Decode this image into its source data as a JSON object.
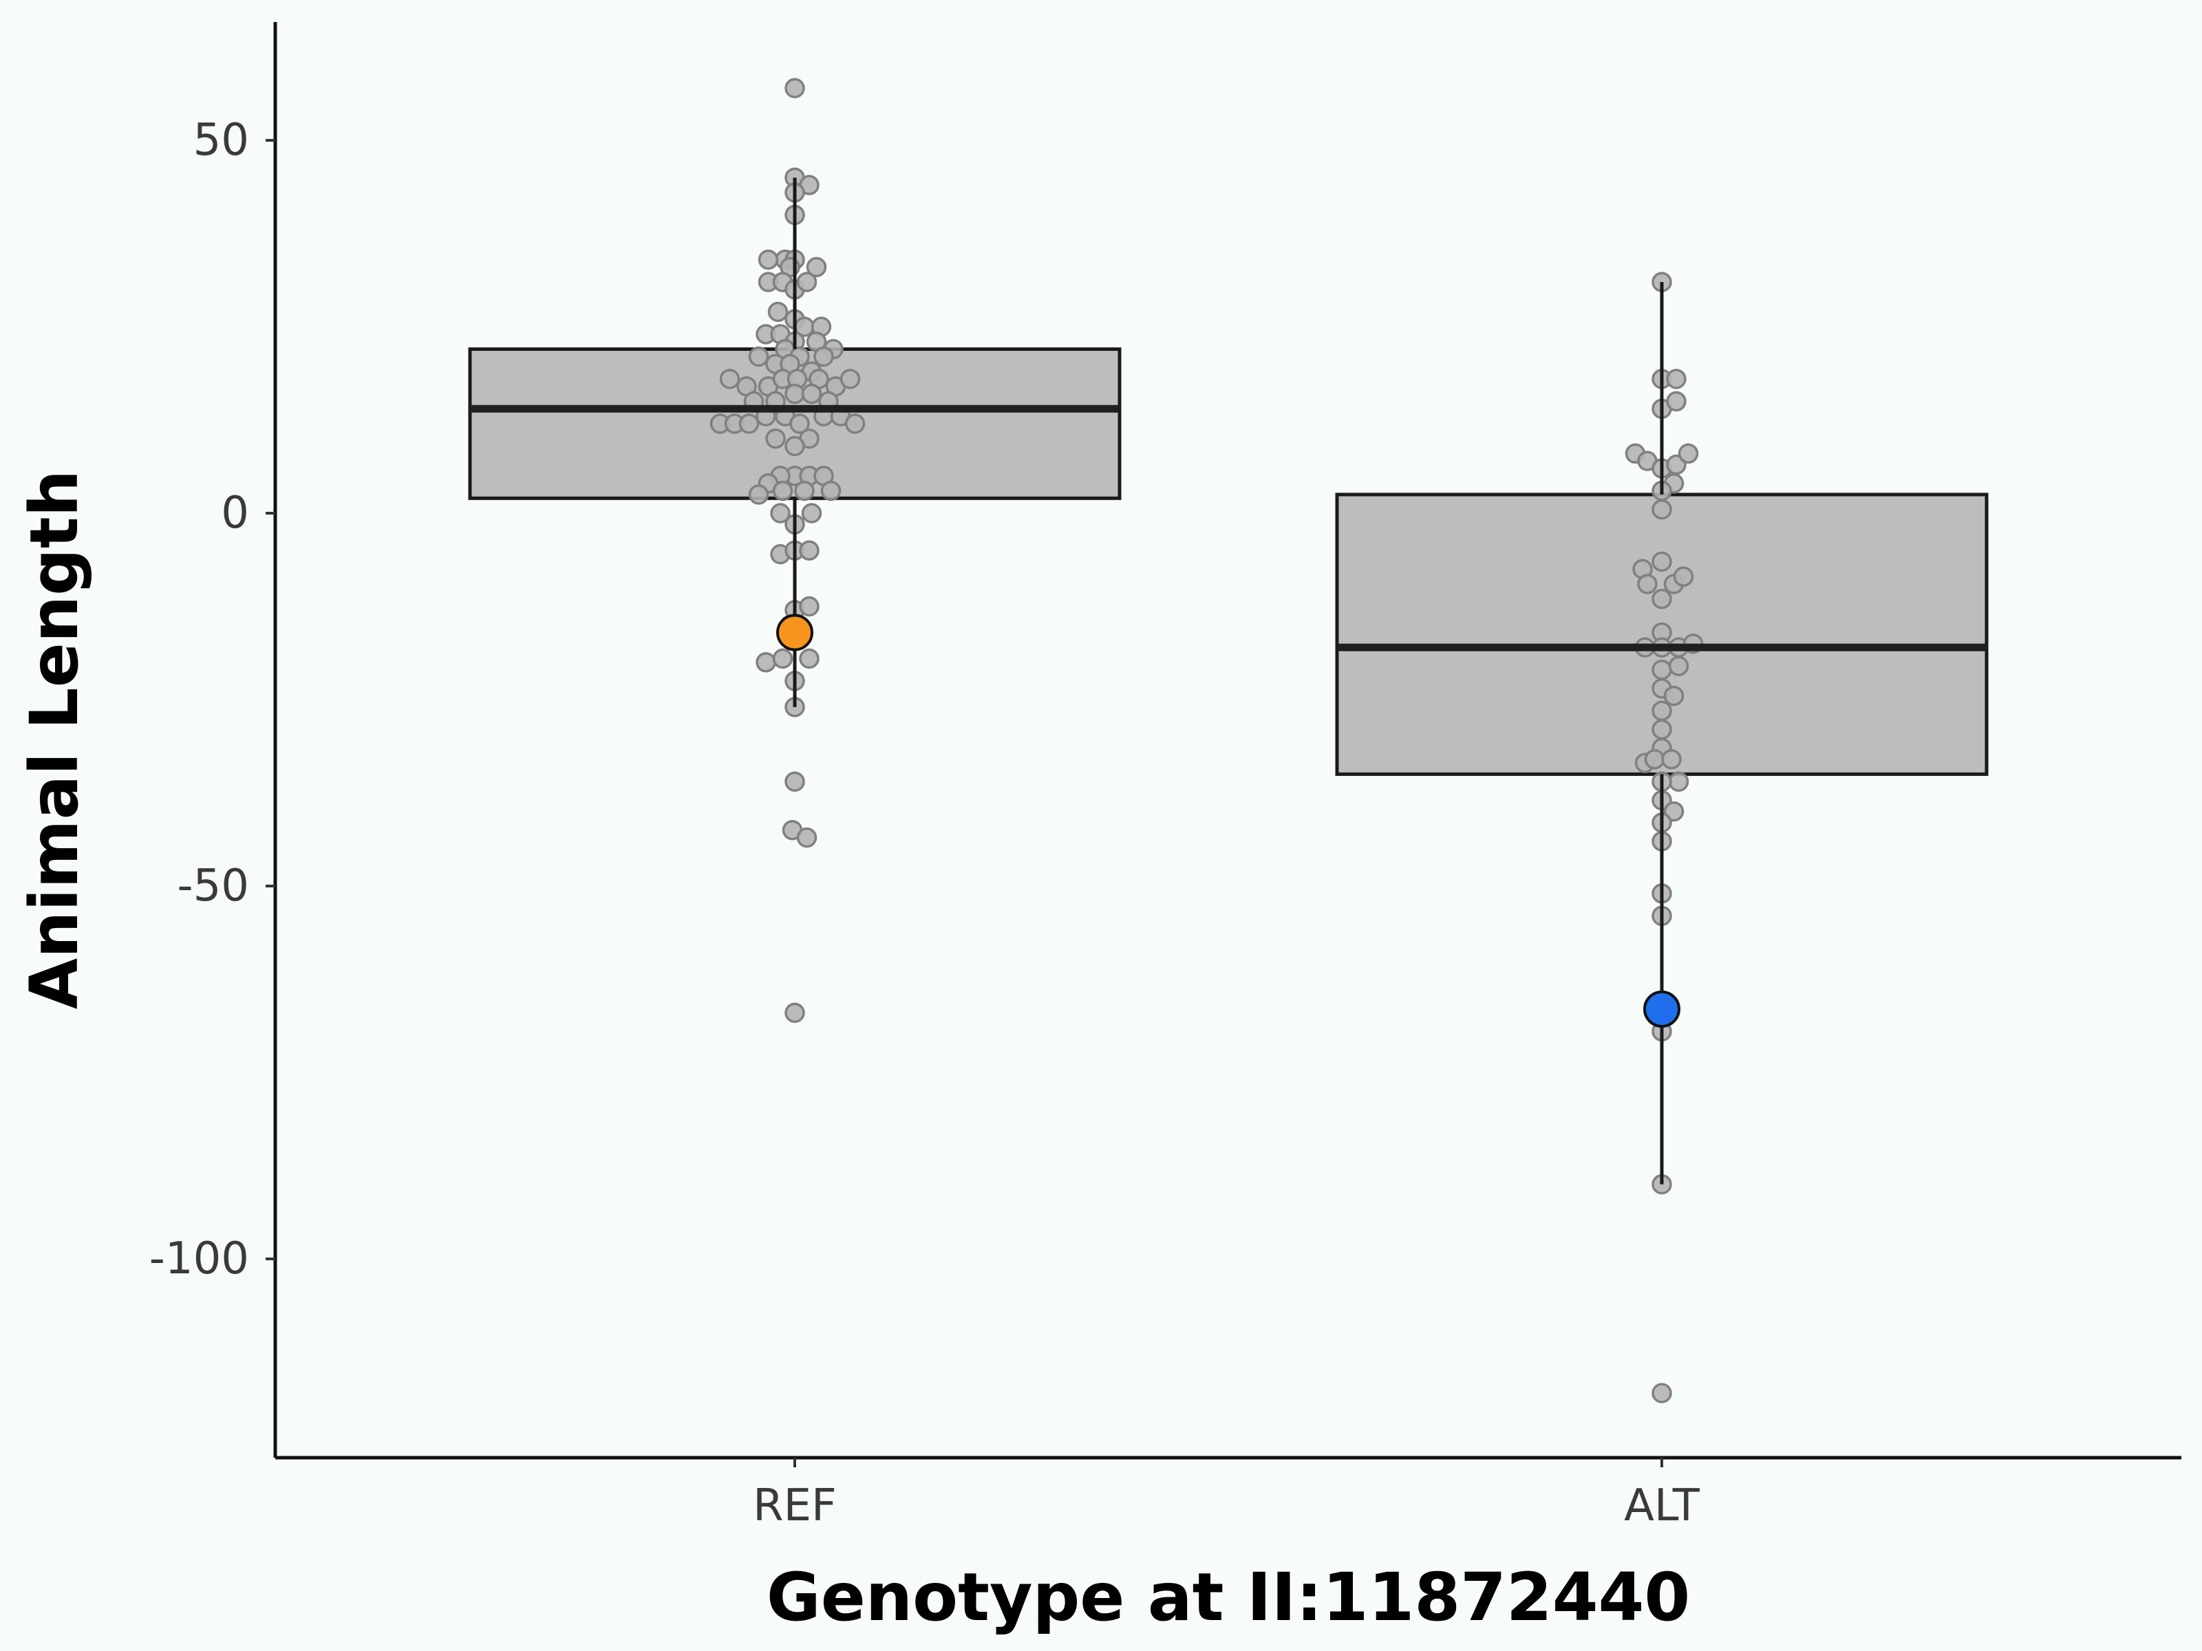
{
  "chart_data": {
    "type": "box",
    "title": "",
    "xlabel": "Genotype at II:11872440",
    "ylabel": "Animal Length",
    "categories": [
      "REF",
      "ALT"
    ],
    "ylim": [
      -127,
      66
    ],
    "yticks": [
      50,
      0,
      -50,
      -100
    ],
    "ytick_labels": [
      "50",
      "0",
      "-50",
      "-100"
    ],
    "grid": false,
    "colors": {
      "background": "#f8fcf8",
      "box_fill": "#bdbebc",
      "box_stroke": "#1a1a1a",
      "point_fill": "#b4b4b4",
      "point_stroke": "#808080",
      "highlight_ref": "#f7941d",
      "highlight_alt": "#1f6fec"
    },
    "boxes": [
      {
        "category": "REF",
        "q1": 2,
        "median": 14,
        "q3": 22,
        "whisker_low": -26,
        "whisker_high": 45
      },
      {
        "category": "ALT",
        "q1": -35,
        "median": -18,
        "q3": 2.5,
        "whisker_low": -90,
        "whisker_high": 31
      }
    ],
    "points": [
      {
        "category": "REF",
        "offset": 0,
        "y": 57
      },
      {
        "category": "REF",
        "offset": 0,
        "y": 45
      },
      {
        "category": "REF",
        "offset": 0.06,
        "y": 44
      },
      {
        "category": "REF",
        "offset": 0,
        "y": 43
      },
      {
        "category": "REF",
        "offset": 0,
        "y": 40
      },
      {
        "category": "REF",
        "offset": -0.04,
        "y": 34
      },
      {
        "category": "REF",
        "offset": -0.11,
        "y": 34
      },
      {
        "category": "REF",
        "offset": 0,
        "y": 34
      },
      {
        "category": "REF",
        "offset": -0.02,
        "y": 33
      },
      {
        "category": "REF",
        "offset": 0.09,
        "y": 33
      },
      {
        "category": "REF",
        "offset": -0.11,
        "y": 31
      },
      {
        "category": "REF",
        "offset": -0.05,
        "y": 31
      },
      {
        "category": "REF",
        "offset": 0,
        "y": 30
      },
      {
        "category": "REF",
        "offset": 0.05,
        "y": 31
      },
      {
        "category": "REF",
        "offset": -0.07,
        "y": 27
      },
      {
        "category": "REF",
        "offset": 0,
        "y": 26
      },
      {
        "category": "REF",
        "offset": -0.12,
        "y": 24
      },
      {
        "category": "REF",
        "offset": -0.06,
        "y": 24
      },
      {
        "category": "REF",
        "offset": 0.04,
        "y": 25
      },
      {
        "category": "REF",
        "offset": 0.11,
        "y": 25
      },
      {
        "category": "REF",
        "offset": 0,
        "y": 23
      },
      {
        "category": "REF",
        "offset": 0.09,
        "y": 23
      },
      {
        "category": "REF",
        "offset": 0.16,
        "y": 22
      },
      {
        "category": "REF",
        "offset": -0.04,
        "y": 22
      },
      {
        "category": "REF",
        "offset": 0.02,
        "y": 21
      },
      {
        "category": "REF",
        "offset": -0.15,
        "y": 21
      },
      {
        "category": "REF",
        "offset": -0.08,
        "y": 20
      },
      {
        "category": "REF",
        "offset": -0.02,
        "y": 20
      },
      {
        "category": "REF",
        "offset": 0.07,
        "y": 19
      },
      {
        "category": "REF",
        "offset": 0.12,
        "y": 21
      },
      {
        "category": "REF",
        "offset": -0.27,
        "y": 18
      },
      {
        "category": "REF",
        "offset": -0.2,
        "y": 17
      },
      {
        "category": "REF",
        "offset": -0.11,
        "y": 17
      },
      {
        "category": "REF",
        "offset": -0.05,
        "y": 18
      },
      {
        "category": "REF",
        "offset": 0.01,
        "y": 18
      },
      {
        "category": "REF",
        "offset": 0.1,
        "y": 18
      },
      {
        "category": "REF",
        "offset": 0.17,
        "y": 17
      },
      {
        "category": "REF",
        "offset": 0.23,
        "y": 18
      },
      {
        "category": "REF",
        "offset": -0.17,
        "y": 15
      },
      {
        "category": "REF",
        "offset": -0.08,
        "y": 15
      },
      {
        "category": "REF",
        "offset": 0,
        "y": 16
      },
      {
        "category": "REF",
        "offset": 0.07,
        "y": 16
      },
      {
        "category": "REF",
        "offset": 0.14,
        "y": 15
      },
      {
        "category": "REF",
        "offset": -0.31,
        "y": 12
      },
      {
        "category": "REF",
        "offset": -0.25,
        "y": 12
      },
      {
        "category": "REF",
        "offset": -0.19,
        "y": 12
      },
      {
        "category": "REF",
        "offset": -0.12,
        "y": 13
      },
      {
        "category": "REF",
        "offset": -0.04,
        "y": 13
      },
      {
        "category": "REF",
        "offset": 0.02,
        "y": 12
      },
      {
        "category": "REF",
        "offset": 0.12,
        "y": 13
      },
      {
        "category": "REF",
        "offset": 0.19,
        "y": 13
      },
      {
        "category": "REF",
        "offset": 0.25,
        "y": 12
      },
      {
        "category": "REF",
        "offset": -0.08,
        "y": 10
      },
      {
        "category": "REF",
        "offset": 0.06,
        "y": 10
      },
      {
        "category": "REF",
        "offset": 0,
        "y": 9
      },
      {
        "category": "REF",
        "offset": 0,
        "y": 5
      },
      {
        "category": "REF",
        "offset": -0.06,
        "y": 5
      },
      {
        "category": "REF",
        "offset": 0.06,
        "y": 5
      },
      {
        "category": "REF",
        "offset": 0.12,
        "y": 5
      },
      {
        "category": "REF",
        "offset": -0.11,
        "y": 4
      },
      {
        "category": "REF",
        "offset": -0.05,
        "y": 3
      },
      {
        "category": "REF",
        "offset": 0.04,
        "y": 3
      },
      {
        "category": "REF",
        "offset": 0.15,
        "y": 3
      },
      {
        "category": "REF",
        "offset": -0.15,
        "y": 2.5
      },
      {
        "category": "REF",
        "offset": -0.06,
        "y": 0
      },
      {
        "category": "REF",
        "offset": 0.07,
        "y": 0
      },
      {
        "category": "REF",
        "offset": 0,
        "y": -1.5
      },
      {
        "category": "REF",
        "offset": -0.06,
        "y": -5.5
      },
      {
        "category": "REF",
        "offset": 0,
        "y": -5
      },
      {
        "category": "REF",
        "offset": 0.06,
        "y": -5
      },
      {
        "category": "REF",
        "offset": 0,
        "y": -13
      },
      {
        "category": "REF",
        "offset": 0.06,
        "y": -12.5
      },
      {
        "category": "REF",
        "offset": -0.02,
        "y": -15
      },
      {
        "category": "REF",
        "offset": -0.12,
        "y": -20
      },
      {
        "category": "REF",
        "offset": -0.05,
        "y": -19.5
      },
      {
        "category": "REF",
        "offset": 0.06,
        "y": -19.5
      },
      {
        "category": "REF",
        "offset": 0,
        "y": -22.5
      },
      {
        "category": "REF",
        "offset": 0,
        "y": -26
      },
      {
        "category": "REF",
        "offset": 0,
        "y": -36
      },
      {
        "category": "REF",
        "offset": -0.01,
        "y": -42.5
      },
      {
        "category": "REF",
        "offset": 0.05,
        "y": -43.5
      },
      {
        "category": "REF",
        "offset": 0,
        "y": -67
      },
      {
        "category": "ALT",
        "offset": 0,
        "y": 31
      },
      {
        "category": "ALT",
        "offset": 0,
        "y": 18
      },
      {
        "category": "ALT",
        "offset": 0.06,
        "y": 18
      },
      {
        "category": "ALT",
        "offset": 0,
        "y": 14
      },
      {
        "category": "ALT",
        "offset": 0.06,
        "y": 15
      },
      {
        "category": "ALT",
        "offset": -0.11,
        "y": 8
      },
      {
        "category": "ALT",
        "offset": -0.06,
        "y": 7
      },
      {
        "category": "ALT",
        "offset": 0,
        "y": 6
      },
      {
        "category": "ALT",
        "offset": 0.06,
        "y": 6.5
      },
      {
        "category": "ALT",
        "offset": 0.11,
        "y": 8
      },
      {
        "category": "ALT",
        "offset": 0.05,
        "y": 4
      },
      {
        "category": "ALT",
        "offset": 0,
        "y": 3
      },
      {
        "category": "ALT",
        "offset": 0,
        "y": 0.5
      },
      {
        "category": "ALT",
        "offset": 0,
        "y": -6.5
      },
      {
        "category": "ALT",
        "offset": -0.08,
        "y": -7.5
      },
      {
        "category": "ALT",
        "offset": -0.06,
        "y": -9.5
      },
      {
        "category": "ALT",
        "offset": 0.05,
        "y": -9.5
      },
      {
        "category": "ALT",
        "offset": 0.09,
        "y": -8.5
      },
      {
        "category": "ALT",
        "offset": 0,
        "y": -11.5
      },
      {
        "category": "ALT",
        "offset": 0,
        "y": -16
      },
      {
        "category": "ALT",
        "offset": -0.07,
        "y": -18
      },
      {
        "category": "ALT",
        "offset": 0,
        "y": -18
      },
      {
        "category": "ALT",
        "offset": 0.07,
        "y": -18
      },
      {
        "category": "ALT",
        "offset": 0.13,
        "y": -17.5
      },
      {
        "category": "ALT",
        "offset": 0,
        "y": -21
      },
      {
        "category": "ALT",
        "offset": 0.07,
        "y": -20.5
      },
      {
        "category": "ALT",
        "offset": 0,
        "y": -23.5
      },
      {
        "category": "ALT",
        "offset": 0.05,
        "y": -24.5
      },
      {
        "category": "ALT",
        "offset": 0,
        "y": -26.5
      },
      {
        "category": "ALT",
        "offset": 0,
        "y": -29
      },
      {
        "category": "ALT",
        "offset": 0,
        "y": -31.5
      },
      {
        "category": "ALT",
        "offset": -0.07,
        "y": -33.5
      },
      {
        "category": "ALT",
        "offset": -0.03,
        "y": -33
      },
      {
        "category": "ALT",
        "offset": 0.04,
        "y": -33
      },
      {
        "category": "ALT",
        "offset": 0.07,
        "y": -36
      },
      {
        "category": "ALT",
        "offset": 0,
        "y": -36
      },
      {
        "category": "ALT",
        "offset": 0,
        "y": -38.5
      },
      {
        "category": "ALT",
        "offset": 0.05,
        "y": -40
      },
      {
        "category": "ALT",
        "offset": 0,
        "y": -41.5
      },
      {
        "category": "ALT",
        "offset": 0,
        "y": -44
      },
      {
        "category": "ALT",
        "offset": 0,
        "y": -51
      },
      {
        "category": "ALT",
        "offset": 0,
        "y": -54
      },
      {
        "category": "ALT",
        "offset": 0,
        "y": -69.5
      },
      {
        "category": "ALT",
        "offset": 0,
        "y": -90
      },
      {
        "category": "ALT",
        "offset": 0,
        "y": -118
      }
    ],
    "highlights": [
      {
        "category": "REF",
        "y": -16,
        "color": "#f7941d"
      },
      {
        "category": "ALT",
        "y": -66.5,
        "color": "#1f6fec"
      }
    ]
  }
}
